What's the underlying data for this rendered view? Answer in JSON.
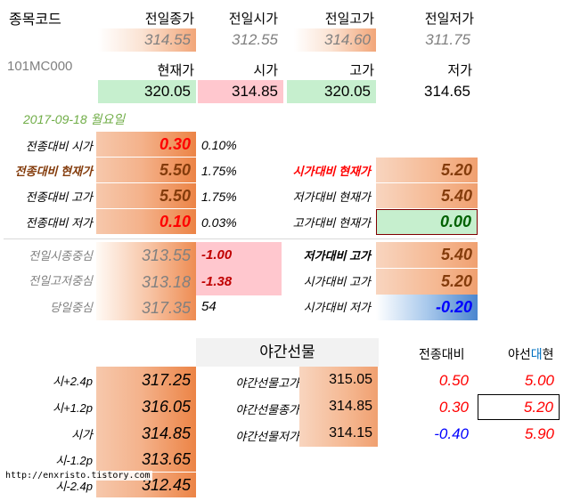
{
  "header": {
    "code_label": "종목코드",
    "code_value": "101MC000",
    "date": "2017-09-18 월요일"
  },
  "prev_day": {
    "labels": [
      "전일종가",
      "전일시가",
      "전일고가",
      "전일저가"
    ],
    "values": [
      "314.55",
      "312.55",
      "314.60",
      "311.75"
    ]
  },
  "today": {
    "labels": [
      "현재가",
      "시가",
      "고가",
      "저가"
    ],
    "values": [
      "320.05",
      "314.85",
      "320.05",
      "314.65"
    ]
  },
  "compare_left": [
    {
      "label": "전종대비 시가",
      "value": "0.30",
      "pct": "0.10%"
    },
    {
      "label": "전종대비 현재가",
      "value": "5.50",
      "pct": "1.75%"
    },
    {
      "label": "전종대비 고가",
      "value": "5.50",
      "pct": "1.75%"
    },
    {
      "label": "전종대비 저가",
      "value": "0.10",
      "pct": "0.03%"
    }
  ],
  "compare_right": [
    {
      "label": "시가대비 현재가",
      "value": "5.20"
    },
    {
      "label": "저가대비 현재가",
      "value": "5.40"
    },
    {
      "label": "고가대비 현재가",
      "value": "0.00"
    }
  ],
  "center": [
    {
      "label": "전일시종중심",
      "value": "313.55",
      "diff": "-1.00"
    },
    {
      "label": "전일고저중심",
      "value": "313.18",
      "diff": "-1.38"
    },
    {
      "label": "당일중심",
      "value": "317.35",
      "diff": "54"
    }
  ],
  "range_right": [
    {
      "label": "저가대비 고가",
      "value": "5.40"
    },
    {
      "label": "시가대비 고가",
      "value": "5.20"
    },
    {
      "label": "시가대비 저가",
      "value": "-0.20"
    }
  ],
  "night": {
    "title": "야간선물",
    "col_change": "전종대비",
    "col_diff_a": "야선",
    "col_diff_b": "대",
    "col_diff_c": "현",
    "rows": [
      {
        "label": "야간선물고가",
        "value": "315.05",
        "change": "0.50",
        "diff": "5.00"
      },
      {
        "label": "야간선물종가",
        "value": "314.85",
        "change": "0.30",
        "diff": "5.20"
      },
      {
        "label": "야간선물저가",
        "value": "314.15",
        "change": "-0.40",
        "diff": "5.90"
      }
    ]
  },
  "pivots": [
    {
      "label": "시+2.4p",
      "value": "317.25"
    },
    {
      "label": "시+1.2p",
      "value": "316.05"
    },
    {
      "label": "시가",
      "value": "314.85"
    },
    {
      "label": "시-1.2p",
      "value": "313.65"
    },
    {
      "label": "시-2.4p",
      "value": "312.45"
    }
  ],
  "watermark": "http://enxristo.tistory.com"
}
